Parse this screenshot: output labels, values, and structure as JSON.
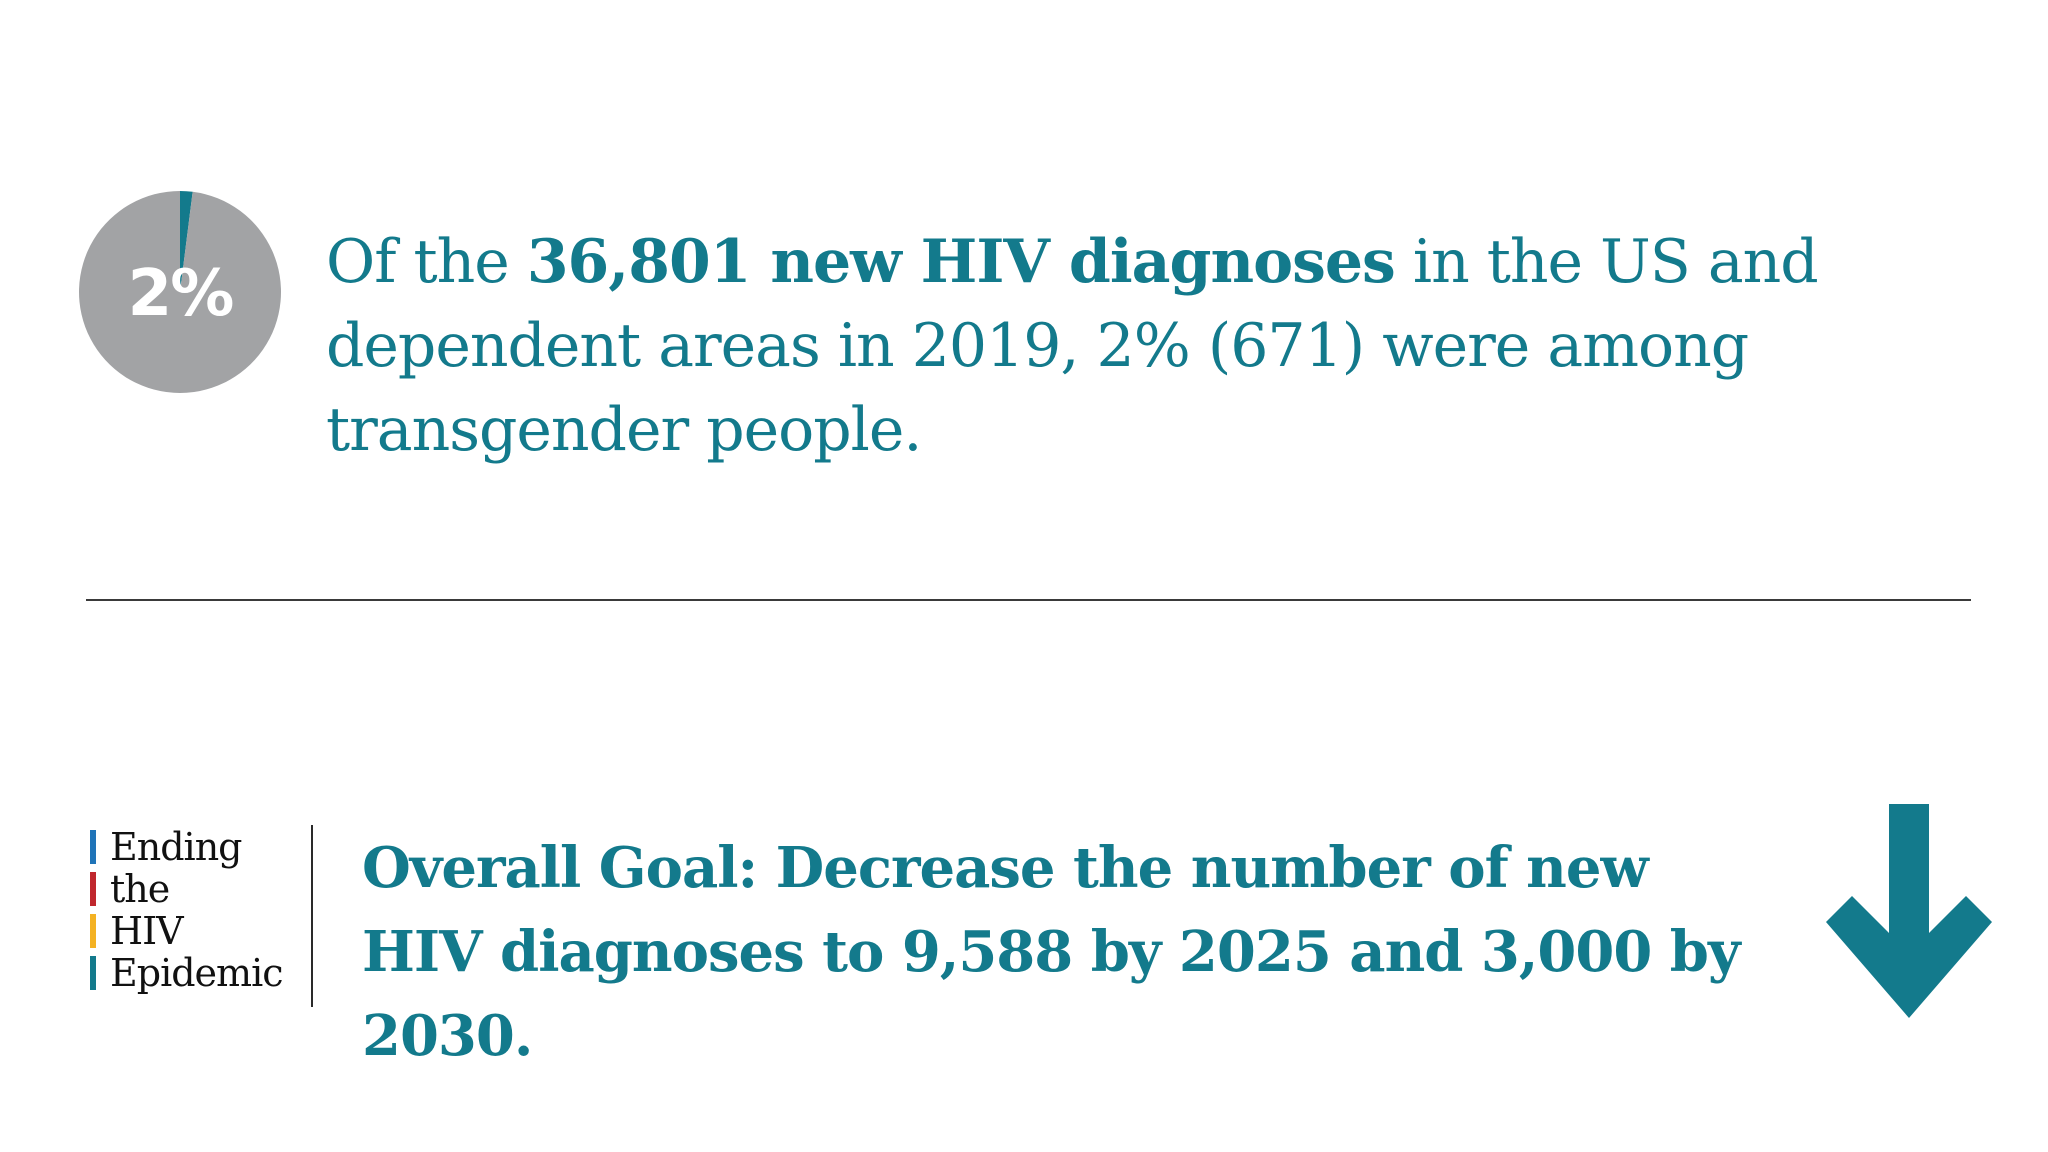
{
  "chart_data": {
    "type": "pie",
    "slices": [
      {
        "name": "",
        "value": 2,
        "color": "#137a8c"
      },
      {
        "name": "",
        "value": 98,
        "color": "#a2a3a5"
      }
    ],
    "center_label": "2%"
  },
  "headline": {
    "prefix": "Of the ",
    "bold": "36,801 new HIV diagnoses",
    "suffix": " in the US and dependent areas in 2019, 2% (671) were among transgender people."
  },
  "logo": {
    "words": [
      {
        "text": "Ending",
        "color": "#1f74b8"
      },
      {
        "text": "the",
        "color": "#c0272d"
      },
      {
        "text": "HIV",
        "color": "#f4b223"
      },
      {
        "text": "Epidemic",
        "color": "#137a8c"
      }
    ]
  },
  "goal": {
    "text": "Overall Goal: Decrease the number of new HIV diagnoses to 9,588 by 2025 and 3,000 by 2030."
  },
  "colors": {
    "accent": "#137a8c",
    "pie_rest": "#a2a3a5",
    "text_dark": "#111111"
  },
  "icons": {
    "arrow": "down-arrow-icon"
  }
}
